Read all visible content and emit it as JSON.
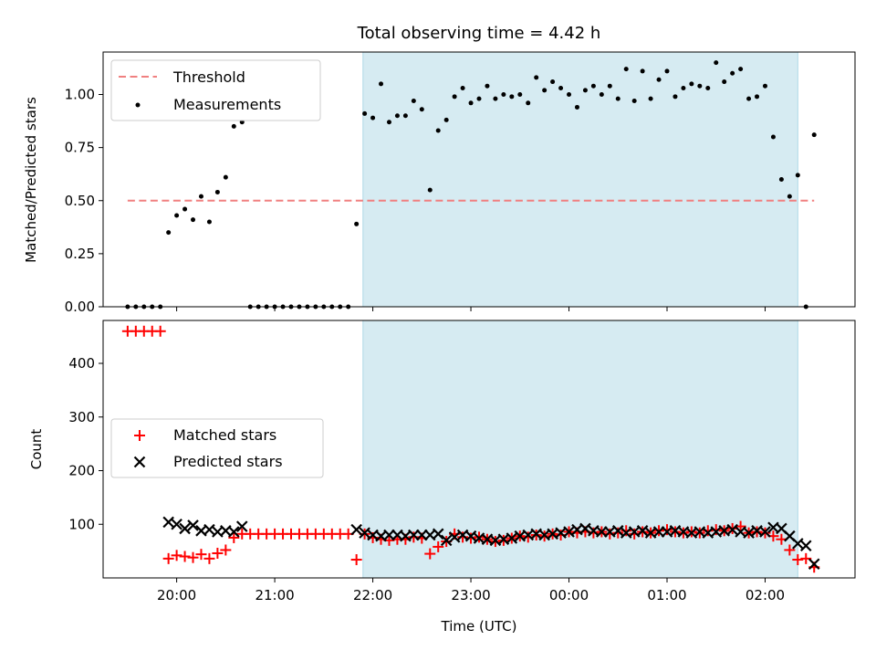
{
  "figure": {
    "title": "Total observing time = 4.42 h"
  },
  "colors": {
    "threshold": "#f08080",
    "measurement": "#000000",
    "matched": "#ff0000",
    "predicted": "#000000",
    "span": "#add8e6"
  },
  "chart_data": [
    {
      "type": "scatter",
      "ylabel": "Matched/Predicted stars",
      "ylim": [
        0,
        1.2
      ],
      "yticks": [
        0,
        0.25,
        0.5,
        0.75,
        1.0
      ],
      "yticklabels": [
        "0.00",
        "0.25",
        "0.50",
        "0.75",
        "1.00"
      ],
      "xlim": [
        "19:15",
        "02:55"
      ],
      "observing_span": [
        "21:54",
        "02:20"
      ],
      "threshold": {
        "value": 0.5,
        "x_range": [
          "19:30",
          "02:30"
        ]
      },
      "legend": {
        "position": "top-left",
        "entries": [
          "Threshold",
          "Measurements"
        ]
      },
      "series": [
        {
          "name": "Measurements",
          "x": [
            "19:30",
            "19:35",
            "19:40",
            "19:45",
            "19:50",
            "19:55",
            "20:00",
            "20:05",
            "20:10",
            "20:15",
            "20:20",
            "20:25",
            "20:30",
            "20:35",
            "20:40",
            "20:45",
            "20:50",
            "20:55",
            "21:00",
            "21:05",
            "21:10",
            "21:15",
            "21:20",
            "21:25",
            "21:30",
            "21:35",
            "21:40",
            "21:45",
            "21:50",
            "21:55",
            "22:00",
            "22:05",
            "22:10",
            "22:15",
            "22:20",
            "22:25",
            "22:30",
            "22:35",
            "22:40",
            "22:45",
            "22:50",
            "22:55",
            "23:00",
            "23:05",
            "23:10",
            "23:15",
            "23:20",
            "23:25",
            "23:30",
            "23:35",
            "23:40",
            "23:45",
            "23:50",
            "23:55",
            "00:00",
            "00:05",
            "00:10",
            "00:15",
            "00:20",
            "00:25",
            "00:30",
            "00:35",
            "00:40",
            "00:45",
            "00:50",
            "00:55",
            "01:00",
            "01:05",
            "01:10",
            "01:15",
            "01:20",
            "01:25",
            "01:30",
            "01:35",
            "01:40",
            "01:45",
            "01:50",
            "01:55",
            "02:00",
            "02:05",
            "02:10",
            "02:15",
            "02:20",
            "02:25",
            "02:30"
          ],
          "y": [
            0,
            0,
            0,
            0,
            0,
            0.35,
            0.43,
            0.46,
            0.41,
            0.52,
            0.4,
            0.54,
            0.61,
            0.85,
            0.87,
            0,
            0,
            0,
            0,
            0,
            0,
            0,
            0,
            0,
            0,
            0,
            0,
            0,
            0.39,
            0.91,
            0.89,
            1.05,
            0.87,
            0.9,
            0.9,
            0.97,
            0.93,
            0.55,
            0.83,
            0.88,
            0.99,
            1.03,
            0.96,
            0.98,
            1.04,
            0.98,
            1.0,
            0.99,
            1.0,
            0.96,
            1.08,
            1.02,
            1.06,
            1.03,
            1.0,
            0.94,
            1.02,
            1.04,
            1.0,
            1.04,
            0.98,
            1.12,
            0.97,
            1.11,
            0.98,
            1.07,
            1.11,
            0.99,
            1.03,
            1.05,
            1.04,
            1.03,
            1.15,
            1.06,
            1.1,
            1.12,
            0.98,
            0.99,
            1.04,
            0.8,
            0.6,
            0.52,
            0.62,
            0,
            0.81
          ]
        }
      ]
    },
    {
      "type": "scatter",
      "xlabel": "Time (UTC)",
      "ylabel": "Count",
      "ylim": [
        0,
        480
      ],
      "yticks": [
        100,
        200,
        300,
        400
      ],
      "yticklabels": [
        "100",
        "200",
        "300",
        "400"
      ],
      "xlim": [
        "19:15",
        "02:55"
      ],
      "xticks": [
        "20:00",
        "21:00",
        "22:00",
        "23:00",
        "00:00",
        "01:00",
        "02:00"
      ],
      "observing_span": [
        "21:54",
        "02:20"
      ],
      "legend": {
        "position": "center-left",
        "entries": [
          "Matched stars",
          "Predicted stars"
        ]
      },
      "series": [
        {
          "name": "Matched stars",
          "x": [
            "19:30",
            "19:35",
            "19:40",
            "19:45",
            "19:50",
            "19:55",
            "20:00",
            "20:05",
            "20:10",
            "20:15",
            "20:20",
            "20:25",
            "20:30",
            "20:35",
            "20:40",
            "20:45",
            "20:50",
            "20:55",
            "21:00",
            "21:05",
            "21:10",
            "21:15",
            "21:20",
            "21:25",
            "21:30",
            "21:35",
            "21:40",
            "21:45",
            "21:50",
            "21:55",
            "22:00",
            "22:05",
            "22:10",
            "22:15",
            "22:20",
            "22:25",
            "22:30",
            "22:35",
            "22:40",
            "22:45",
            "22:50",
            "22:55",
            "23:00",
            "23:05",
            "23:10",
            "23:15",
            "23:20",
            "23:25",
            "23:30",
            "23:35",
            "23:40",
            "23:45",
            "23:50",
            "23:55",
            "00:00",
            "00:05",
            "00:10",
            "00:15",
            "00:20",
            "00:25",
            "00:30",
            "00:35",
            "00:40",
            "00:45",
            "00:50",
            "00:55",
            "01:00",
            "01:05",
            "01:10",
            "01:15",
            "01:20",
            "01:25",
            "01:30",
            "01:35",
            "01:40",
            "01:45",
            "01:50",
            "01:55",
            "02:00",
            "02:05",
            "02:10",
            "02:15",
            "02:20",
            "02:25",
            "02:30"
          ],
          "y": [
            460,
            460,
            460,
            460,
            460,
            36,
            42,
            40,
            38,
            44,
            36,
            46,
            52,
            75,
            82,
            82,
            82,
            82,
            82,
            82,
            82,
            82,
            82,
            82,
            82,
            82,
            82,
            82,
            34,
            82,
            75,
            72,
            70,
            72,
            72,
            76,
            74,
            45,
            58,
            68,
            82,
            76,
            74,
            76,
            72,
            68,
            70,
            74,
            78,
            76,
            80,
            78,
            82,
            80,
            86,
            84,
            86,
            84,
            86,
            82,
            84,
            88,
            82,
            86,
            84,
            88,
            90,
            86,
            84,
            86,
            84,
            88,
            90,
            88,
            92,
            96,
            84,
            86,
            84,
            78,
            72,
            52,
            34,
            36,
            20
          ]
        },
        {
          "name": "Predicted stars",
          "x": [
            "19:55",
            "20:00",
            "20:05",
            "20:10",
            "20:15",
            "20:20",
            "20:25",
            "20:30",
            "20:35",
            "20:40",
            "21:50",
            "21:55",
            "22:00",
            "22:05",
            "22:10",
            "22:15",
            "22:20",
            "22:25",
            "22:30",
            "22:35",
            "22:40",
            "22:45",
            "22:50",
            "22:55",
            "23:00",
            "23:05",
            "23:10",
            "23:15",
            "23:20",
            "23:25",
            "23:30",
            "23:35",
            "23:40",
            "23:45",
            "23:50",
            "23:55",
            "00:00",
            "00:05",
            "00:10",
            "00:15",
            "00:20",
            "00:25",
            "00:30",
            "00:35",
            "00:40",
            "00:45",
            "00:50",
            "00:55",
            "01:00",
            "01:05",
            "01:10",
            "01:15",
            "01:20",
            "01:25",
            "01:30",
            "01:35",
            "01:40",
            "01:45",
            "01:50",
            "01:55",
            "02:00",
            "02:05",
            "02:10",
            "02:15",
            "02:20",
            "02:25",
            "02:30"
          ],
          "y": [
            104,
            100,
            92,
            98,
            88,
            90,
            86,
            88,
            86,
            96,
            90,
            84,
            80,
            78,
            80,
            80,
            78,
            80,
            80,
            80,
            82,
            70,
            76,
            80,
            78,
            74,
            72,
            70,
            72,
            74,
            78,
            80,
            82,
            80,
            82,
            84,
            86,
            90,
            92,
            88,
            86,
            86,
            88,
            84,
            86,
            88,
            84,
            86,
            86,
            88,
            86,
            84,
            86,
            84,
            86,
            88,
            90,
            86,
            84,
            88,
            86,
            94,
            92,
            78,
            64,
            60,
            26
          ]
        }
      ]
    }
  ]
}
